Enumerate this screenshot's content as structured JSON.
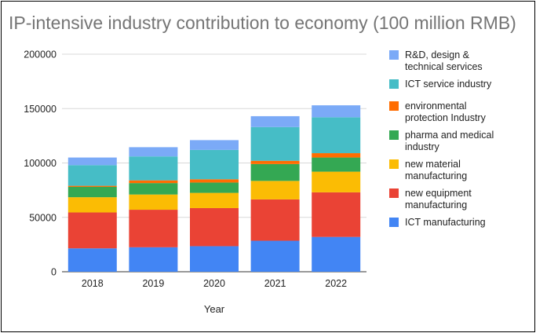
{
  "chart_data": {
    "type": "bar",
    "stacked": true,
    "title": "IP-intensive industry contribution to economy (100 million RMB)",
    "xlabel": "Year",
    "ylabel": "",
    "ylim": [
      0,
      200000
    ],
    "yticks": [
      "0",
      "50000",
      "100000",
      "150000",
      "200000"
    ],
    "grid": true,
    "legend_position": "right",
    "categories": [
      "2018",
      "2019",
      "2020",
      "2021",
      "2022"
    ],
    "series": [
      {
        "name": "ICT manufacturing",
        "color": "#4285f4",
        "values": [
          21500,
          22500,
          23500,
          28500,
          32000
        ]
      },
      {
        "name": "new equipment manufacturing",
        "color": "#ea4335",
        "values": [
          33000,
          34500,
          35000,
          38000,
          41000
        ]
      },
      {
        "name": "new material manufacturing",
        "color": "#fbbc04",
        "values": [
          14000,
          14000,
          14000,
          17000,
          19000
        ]
      },
      {
        "name": "pharma and medical industry",
        "color": "#34a853",
        "values": [
          9500,
          10500,
          9500,
          15500,
          13000
        ]
      },
      {
        "name": "environmental protection Industry",
        "color": "#ff6d01",
        "values": [
          1000,
          2500,
          3000,
          3000,
          4000
        ]
      },
      {
        "name": "ICT service industry",
        "color": "#46bdc6",
        "values": [
          19000,
          22000,
          27000,
          31000,
          33000
        ]
      },
      {
        "name": "R&D, design & technical services",
        "color": "#7baaf7",
        "values": [
          7000,
          8500,
          9000,
          10000,
          11000
        ]
      }
    ]
  }
}
